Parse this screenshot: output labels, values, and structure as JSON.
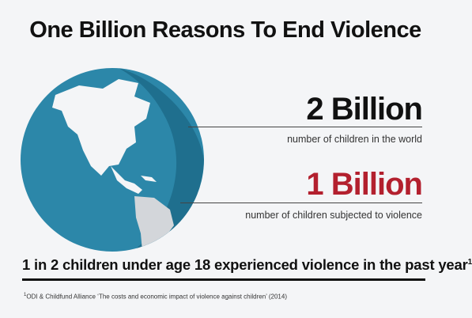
{
  "header": {
    "title": "One Billion Reasons To End Violence"
  },
  "stats": [
    {
      "figure": "2 Billion",
      "caption": "number of children in the world"
    },
    {
      "figure": "1 Billion",
      "caption": "number of children subjected to violence"
    }
  ],
  "statement": {
    "text": "1 in 2 children under age 18 experienced violence in the past year",
    "note_mark": "1"
  },
  "footnote": {
    "mark": "1",
    "text": "ODI & Childfund Alliance ‘The costs and economic impact of violence against children’ (2014)"
  }
}
